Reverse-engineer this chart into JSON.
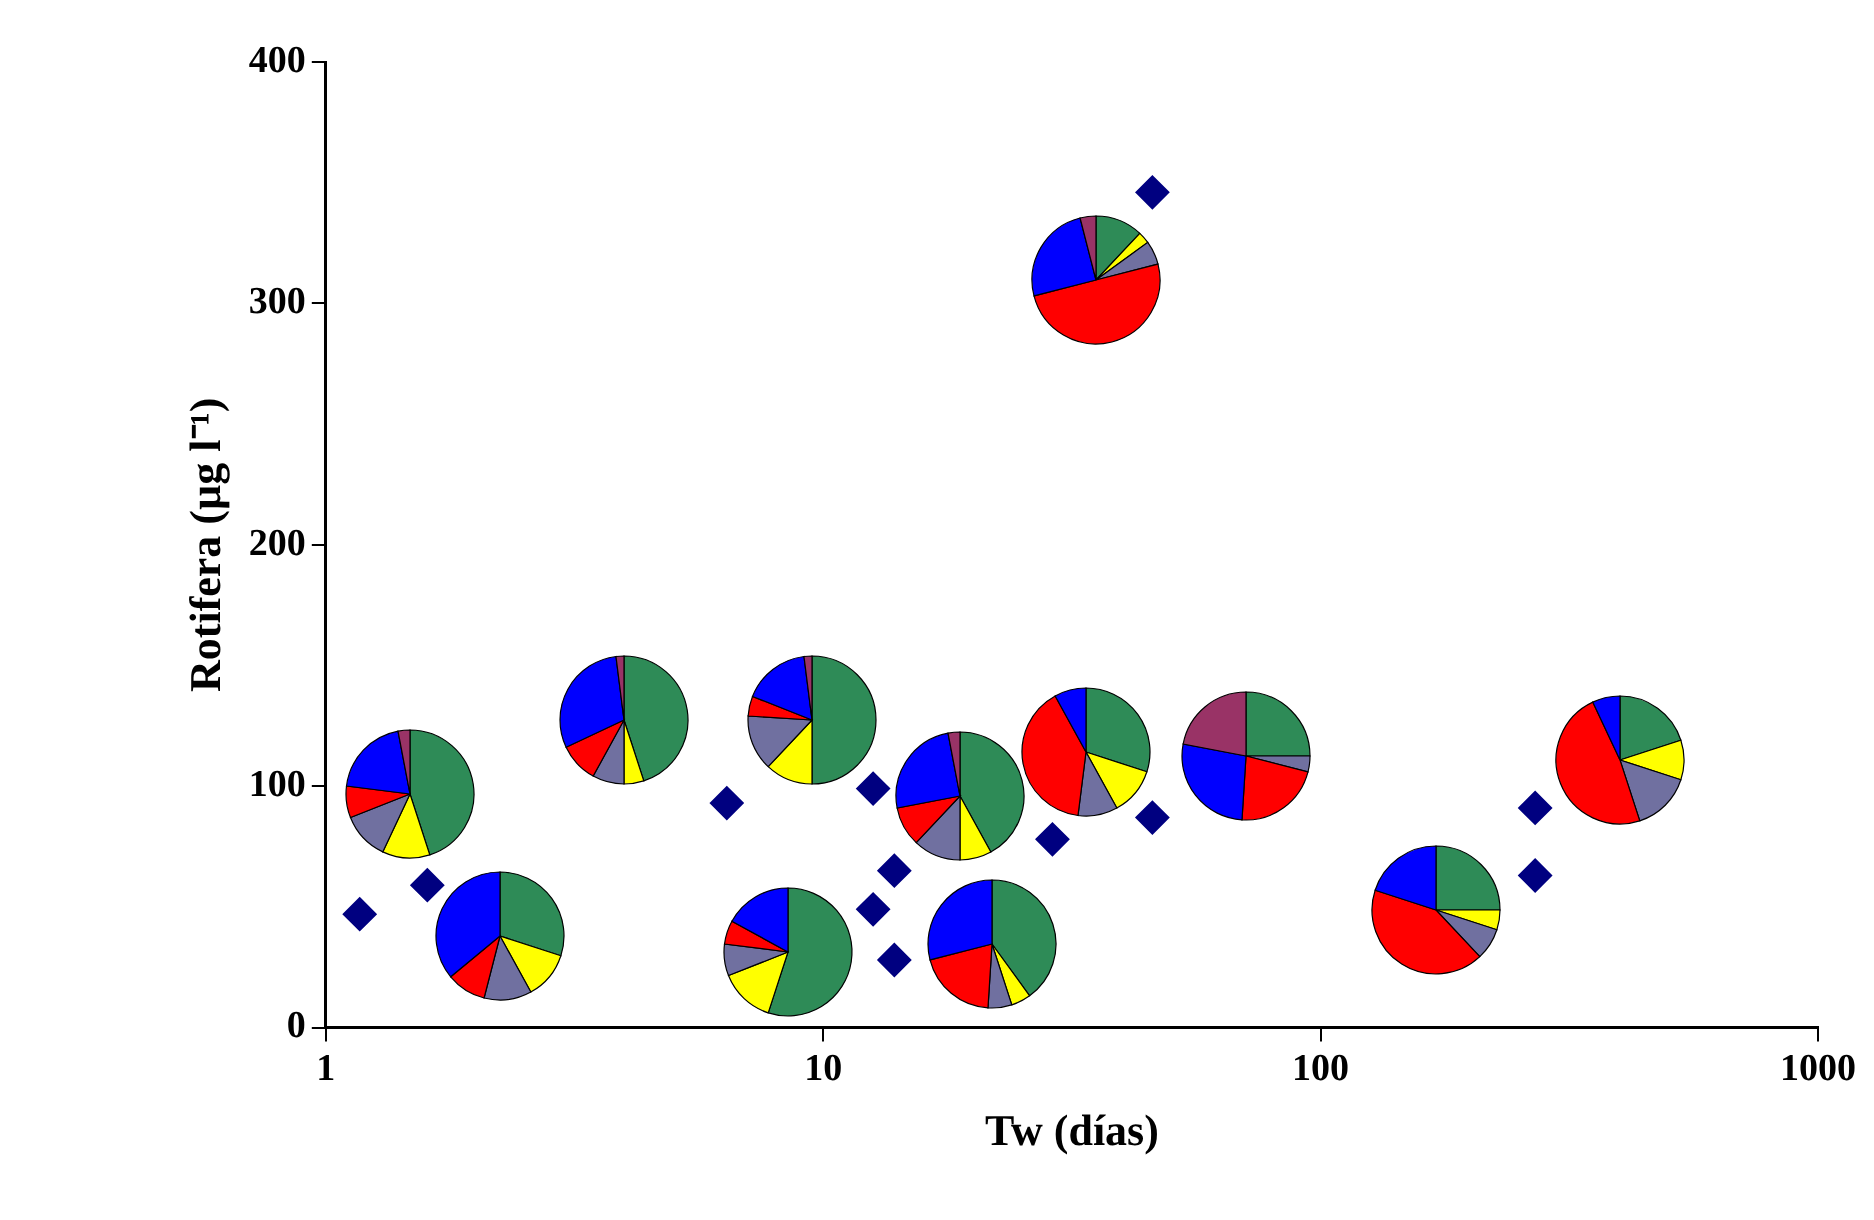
{
  "chart_data": {
    "type": "scatter",
    "xlabel": "Tw (días)",
    "ylabel": "Rotifera (µg l⁻¹)",
    "x": [
      1.17,
      1.6,
      6.4,
      12.6,
      12.6,
      13.9,
      13.9,
      28.9,
      45.9,
      45.9,
      270,
      270
    ],
    "series": [
      {
        "color": "#000080",
        "values": [
          47,
          59,
          93,
          99,
          49,
          65,
          28,
          78,
          87,
          346,
          91,
          63
        ]
      }
    ],
    "log": "x",
    "xlim": [
      1,
      1000
    ],
    "xticks": [
      1,
      10,
      100,
      1000
    ],
    "ylim": [
      0,
      400
    ],
    "yticks": [
      0,
      100,
      200,
      300,
      400
    ],
    "grid": false,
    "legend": false,
    "marker": "diamond"
  }
}
